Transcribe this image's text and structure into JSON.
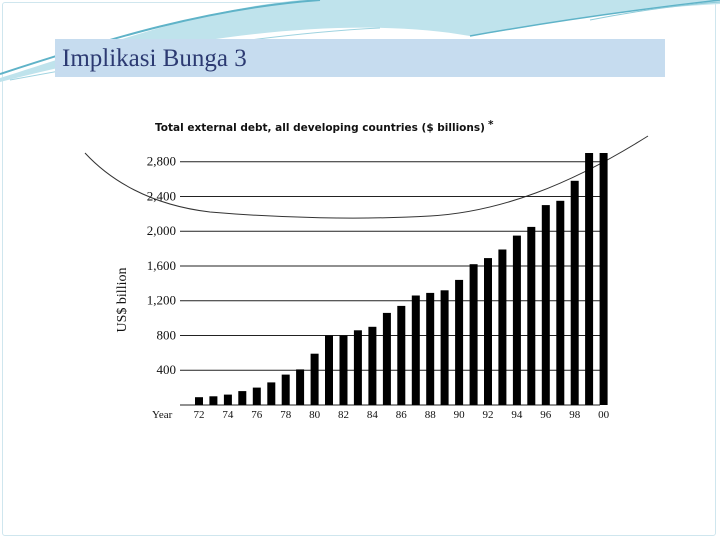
{
  "slide": {
    "title": "Implikasi Bunga 3"
  },
  "colors": {
    "title_bar": "#c6dcef",
    "title_text": "#2c3a72",
    "swoosh": "#5fb3c8",
    "bars": "#000000"
  },
  "chart_data": {
    "type": "bar",
    "title": "Total external debt, all developing countries ($ billions)",
    "title_mark": "*",
    "ylabel": "US$ billion",
    "xlabel": "Year",
    "ylim": [
      0,
      2900
    ],
    "yticks": [
      400,
      800,
      1200,
      1600,
      2000,
      2400,
      2800
    ],
    "ytick_labels": [
      "400",
      "800",
      "1,200",
      "1,600",
      "2,000",
      "2,400",
      "2,800"
    ],
    "xtick_labels": [
      "72",
      "74",
      "76",
      "78",
      "80",
      "82",
      "84",
      "86",
      "88",
      "90",
      "92",
      "94",
      "96",
      "98",
      "00"
    ],
    "gridlines": true,
    "categories": [
      "1972",
      "1973",
      "1974",
      "1975",
      "1976",
      "1977",
      "1978",
      "1979",
      "1980",
      "1981",
      "1982",
      "1983",
      "1984",
      "1985",
      "1986",
      "1987",
      "1988",
      "1989",
      "1990",
      "1991",
      "1992",
      "1993",
      "1994",
      "1995",
      "1996",
      "1997",
      "1998",
      "1999",
      "2000"
    ],
    "values": [
      90,
      100,
      120,
      160,
      200,
      260,
      350,
      410,
      590,
      800,
      800,
      860,
      900,
      1060,
      1140,
      1260,
      1290,
      1320,
      1440,
      1620,
      1690,
      1790,
      1950,
      2050,
      2300,
      2350,
      2580,
      3000,
      3000
    ]
  }
}
